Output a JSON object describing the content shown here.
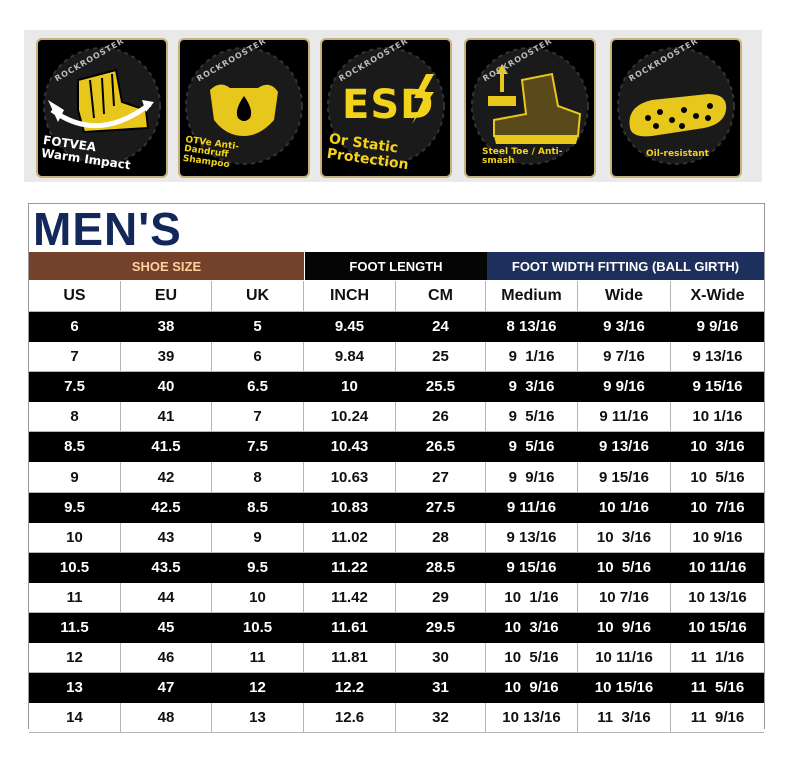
{
  "features": [
    {
      "brand": "ROCKROOSTER",
      "label_lines": [
        "FOTVEA",
        "Warm Impact"
      ],
      "icon": "boot-impact-icon"
    },
    {
      "brand": "ROCKROOSTER",
      "label_lines": [
        "OTVe Anti-",
        "Dandruff",
        "Shampoo"
      ],
      "icon": "leather-drop-icon"
    },
    {
      "brand": "ROCKROOSTER",
      "label_lines": [
        "ESD",
        "Or Static",
        "Protection"
      ],
      "icon": "lightning-icon"
    },
    {
      "brand": "ROCKROOSTER",
      "label_lines": [
        "Steel Toe / Anti-",
        "smash"
      ],
      "icon": "steel-toe-boot-icon"
    },
    {
      "brand": "ROCKROOSTER",
      "label_lines": [
        "Oil-resistant"
      ],
      "icon": "outsole-icon"
    }
  ],
  "table": {
    "title": "MEN'S",
    "groups": {
      "shoe": "SHOE SIZE",
      "foot": "FOOT LENGTH",
      "width": "FOOT WIDTH FITTING (BALL GIRTH)"
    },
    "columns": [
      "US",
      "EU",
      "UK",
      "INCH",
      "CM",
      "Medium",
      "Wide",
      "X-Wide"
    ],
    "rows": [
      [
        "6",
        "38",
        "5",
        "9.45",
        "24",
        "8 13/16",
        "9 3/16",
        "9 9/16"
      ],
      [
        "7",
        "39",
        "6",
        "9.84",
        "25",
        "9  1/16",
        "9 7/16",
        "9 13/16"
      ],
      [
        "7.5",
        "40",
        "6.5",
        "10",
        "25.5",
        "9  3/16",
        "9 9/16",
        "9 15/16"
      ],
      [
        "8",
        "41",
        "7",
        "10.24",
        "26",
        "9  5/16",
        "9 11/16",
        "10 1/16"
      ],
      [
        "8.5",
        "41.5",
        "7.5",
        "10.43",
        "26.5",
        "9  5/16",
        "9 13/16",
        "10  3/16"
      ],
      [
        "9",
        "42",
        "8",
        "10.63",
        "27",
        "9  9/16",
        "9 15/16",
        "10  5/16"
      ],
      [
        "9.5",
        "42.5",
        "8.5",
        "10.83",
        "27.5",
        "9 11/16",
        "10 1/16",
        "10  7/16"
      ],
      [
        "10",
        "43",
        "9",
        "11.02",
        "28",
        "9 13/16",
        "10  3/16",
        "10 9/16"
      ],
      [
        "10.5",
        "43.5",
        "9.5",
        "11.22",
        "28.5",
        "9 15/16",
        "10  5/16",
        "10 11/16"
      ],
      [
        "11",
        "44",
        "10",
        "11.42",
        "29",
        "10  1/16",
        "10 7/16",
        "10 13/16"
      ],
      [
        "11.5",
        "45",
        "10.5",
        "11.61",
        "29.5",
        "10  3/16",
        "10  9/16",
        "10 15/16"
      ],
      [
        "12",
        "46",
        "11",
        "11.81",
        "30",
        "10  5/16",
        "10 11/16",
        "11  1/16"
      ],
      [
        "13",
        "47",
        "12",
        "12.2",
        "31",
        "10  9/16",
        "10 15/16",
        "11  5/16"
      ],
      [
        "14",
        "48",
        "13",
        "12.6",
        "32",
        "10 13/16",
        "11  3/16",
        "11  9/16"
      ]
    ]
  }
}
